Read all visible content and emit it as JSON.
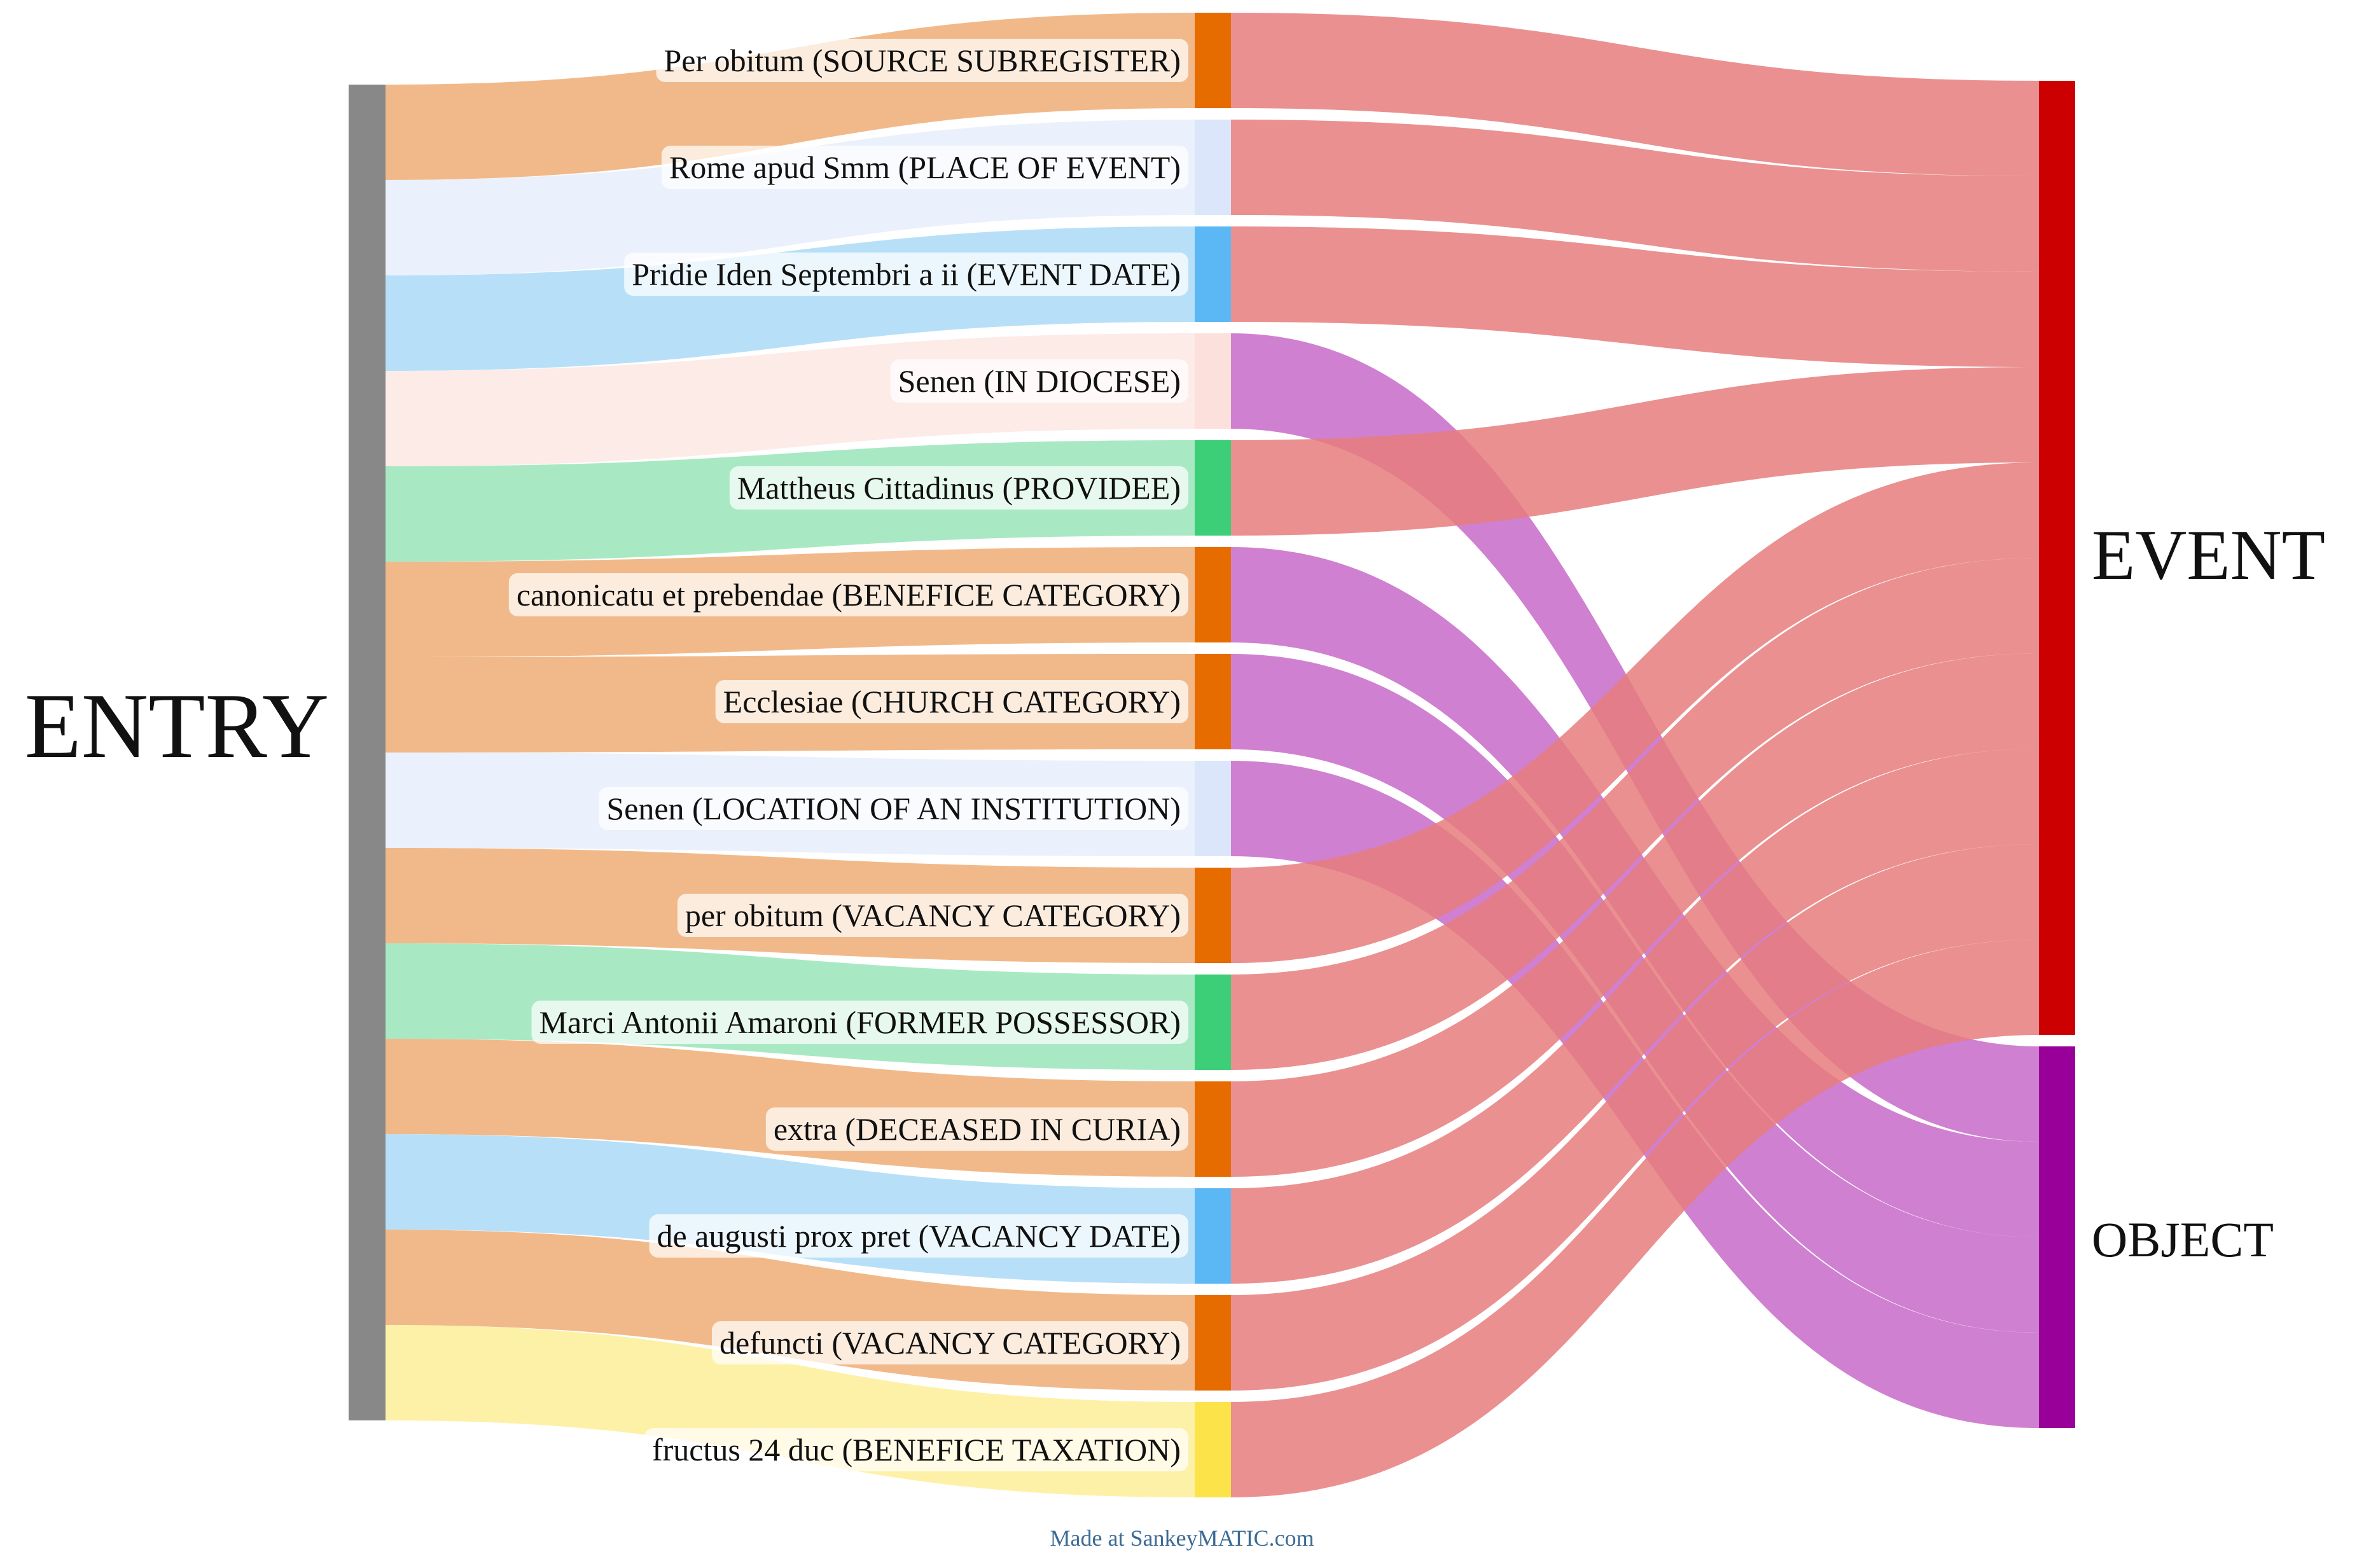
{
  "diagram": {
    "type": "sankey",
    "source_node": {
      "label": "ENTRY",
      "color": "#888888"
    },
    "target_nodes": [
      {
        "id": "event",
        "label": "EVENT",
        "color": "#cc0000",
        "flow_color": "#e67c7c"
      },
      {
        "id": "object",
        "label": "OBJECT",
        "color": "#990099",
        "flow_color": "#c86ac8"
      }
    ],
    "middle_nodes": [
      {
        "label": "Per obitum (SOURCE SUBREGISTER)",
        "color": "#e66c00",
        "entry_flow_color": "#f1b98a",
        "value": 1,
        "target": "event"
      },
      {
        "label": "Rome apud Smm (PLACE OF EVENT)",
        "color": "#dbe6fb",
        "entry_flow_color": "#eaf0fc",
        "value": 1,
        "target": "event"
      },
      {
        "label": "Pridie Iden Septembri a ii (EVENT DATE)",
        "color": "#5cb8f5",
        "entry_flow_color": "#b7e0f8",
        "value": 1,
        "target": "event"
      },
      {
        "label": "Senen (IN DIOCESE)",
        "color": "#fce0dc",
        "entry_flow_color": "#fdebe8",
        "value": 1,
        "target": "object"
      },
      {
        "label": "Mattheus Cittadinus (PROVIDEE)",
        "color": "#3ccf78",
        "entry_flow_color": "#a8e9c4",
        "value": 1,
        "target": "event"
      },
      {
        "label": "canonicatu et prebendae (BENEFICE CATEGORY)",
        "color": "#e66c00",
        "entry_flow_color": "#f1b98a",
        "value": 1,
        "target": "object"
      },
      {
        "label": "Ecclesiae (CHURCH CATEGORY)",
        "color": "#e66c00",
        "entry_flow_color": "#f1b98a",
        "value": 1,
        "target": "object"
      },
      {
        "label": "Senen (LOCATION OF AN INSTITUTION)",
        "color": "#dbe6fb",
        "entry_flow_color": "#eaf0fc",
        "value": 1,
        "target": "object"
      },
      {
        "label": "per obitum (VACANCY CATEGORY)",
        "color": "#e66c00",
        "entry_flow_color": "#f1b98a",
        "value": 1,
        "target": "event"
      },
      {
        "label": "Marci Antonii Amaroni (FORMER POSSESSOR)",
        "color": "#3ccf78",
        "entry_flow_color": "#a8e9c4",
        "value": 1,
        "target": "event"
      },
      {
        "label": "extra (DECEASED IN CURIA)",
        "color": "#e66c00",
        "entry_flow_color": "#f1b98a",
        "value": 1,
        "target": "event"
      },
      {
        "label": "de augusti prox pret (VACANCY DATE)",
        "color": "#5cb8f5",
        "entry_flow_color": "#b7e0f8",
        "value": 1,
        "target": "event"
      },
      {
        "label": "defuncti (VACANCY CATEGORY)",
        "color": "#e66c00",
        "entry_flow_color": "#f1b98a",
        "value": 1,
        "target": "event"
      },
      {
        "label": "fructus 24 duc (BENEFICE TAXATION)",
        "color": "#fce34a",
        "entry_flow_color": "#fdf1a8",
        "value": 1,
        "target": "event"
      }
    ],
    "credit": "Made at SankeyMATIC.com"
  }
}
